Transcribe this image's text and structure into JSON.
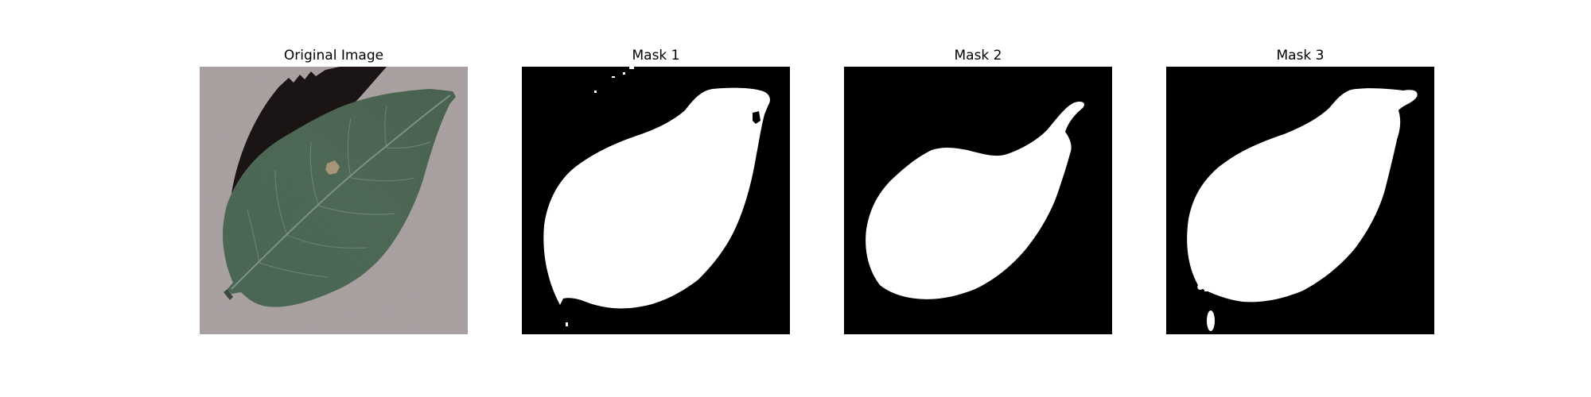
{
  "panels": [
    {
      "title": "Original Image",
      "image": "leaf-photo"
    },
    {
      "title": "Mask 1",
      "image": "leaf-binary-mask"
    },
    {
      "title": "Mask 2",
      "image": "leaf-binary-mask"
    },
    {
      "title": "Mask 3",
      "image": "leaf-binary-mask"
    }
  ],
  "colors": {
    "background": "#ffffff",
    "mask_foreground": "#ffffff",
    "mask_background": "#000000",
    "leaf": "#3c5a44",
    "surface": "#a39a9b"
  }
}
